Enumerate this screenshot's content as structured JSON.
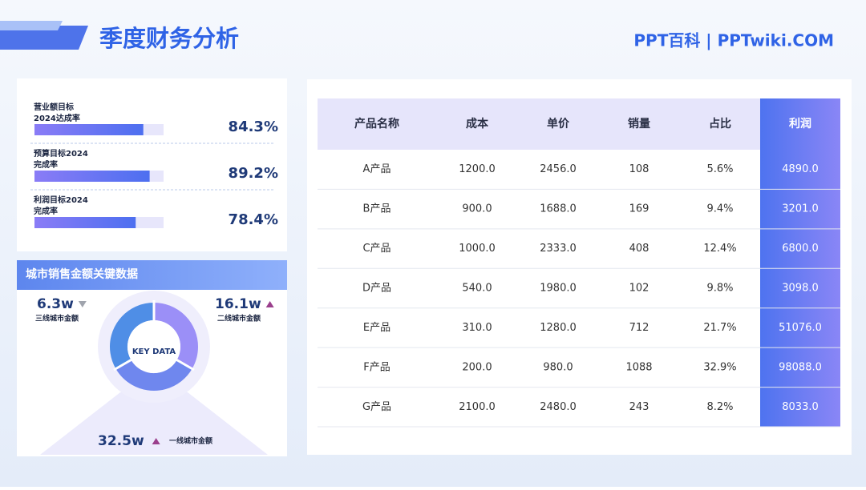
{
  "header": {
    "title": "季度财务分析",
    "brand": "PPT百科 | PPTwiki.COM"
  },
  "progress": {
    "xlim": [
      0,
      100
    ],
    "items": [
      {
        "label": [
          "营业额目标",
          "2024达成率"
        ],
        "value": 84.3,
        "value_label": "84.3%"
      },
      {
        "label": [
          "预算目标2024",
          "完成率"
        ],
        "value": 89.2,
        "value_label": "89.2%"
      },
      {
        "label": [
          "利润目标2024",
          "完成率"
        ],
        "value": 78.4,
        "value_label": "78.4%"
      }
    ]
  },
  "city": {
    "title": "城市销售金额关键数据",
    "center": "KEY DATA",
    "stats": [
      {
        "value": "6.3w",
        "label": "三线城市金额",
        "trend": "down"
      },
      {
        "value": "16.1w",
        "label": "二线城市金额",
        "trend": "up"
      },
      {
        "value": "32.5w",
        "label": "一线城市金额",
        "trend": "up"
      }
    ]
  },
  "table": {
    "header": [
      "产品名称",
      "成本",
      "单价",
      "销量",
      "占比",
      "利润"
    ],
    "rows": [
      [
        "A产品",
        "1200.0",
        "2456.0",
        "108",
        "5.6%",
        "4890.0"
      ],
      [
        "B产品",
        "900.0",
        "1688.0",
        "169",
        "9.4%",
        "3201.0"
      ],
      [
        "C产品",
        "1000.0",
        "2333.0",
        "408",
        "12.4%",
        "6800.0"
      ],
      [
        "D产品",
        "540.0",
        "1980.0",
        "102",
        "9.8%",
        "3098.0"
      ],
      [
        "E产品",
        "310.0",
        "1280.0",
        "712",
        "21.7%",
        "51076.0"
      ],
      [
        "F产品",
        "200.0",
        "980.0",
        "1088",
        "32.9%",
        "98088.0"
      ],
      [
        "G产品",
        "2100.0",
        "2480.0",
        "243",
        "8.2%",
        "8033.0"
      ]
    ]
  }
}
